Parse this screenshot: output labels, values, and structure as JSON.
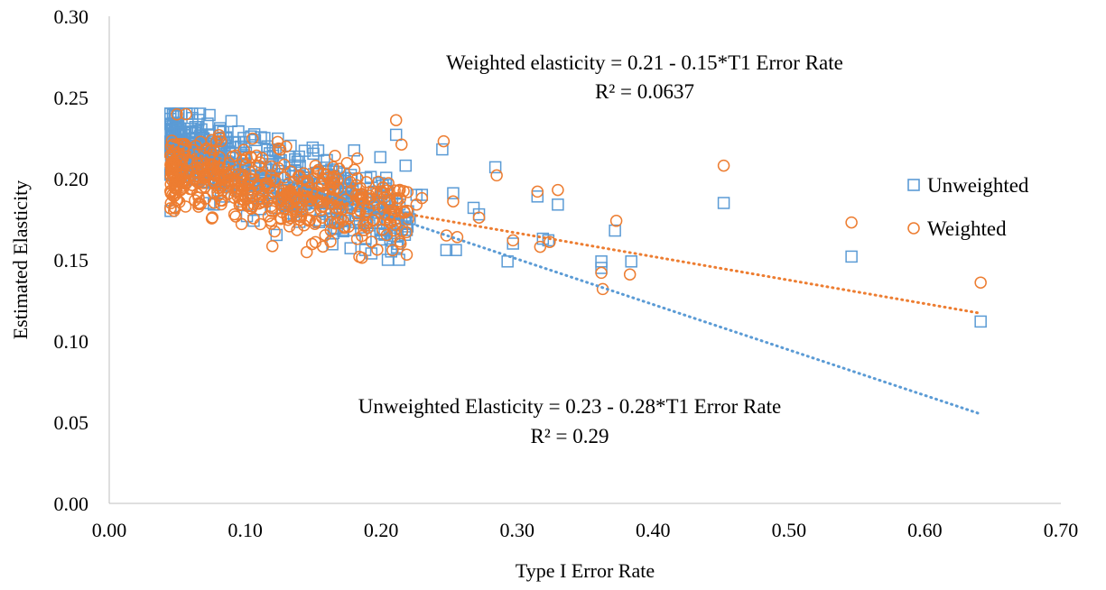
{
  "chart_data": {
    "type": "scatter",
    "title": "",
    "xlabel": "Type I Error Rate",
    "ylabel": "Estimated Elasticity",
    "xlim": [
      0.0,
      0.7
    ],
    "ylim": [
      0.0,
      0.3
    ],
    "x_ticks": [
      "0.00",
      "0.10",
      "0.20",
      "0.30",
      "0.40",
      "0.50",
      "0.60",
      "0.70"
    ],
    "y_ticks": [
      "0.00",
      "0.05",
      "0.10",
      "0.15",
      "0.20",
      "0.25",
      "0.30"
    ],
    "grid": false,
    "legend_position": "right",
    "series": [
      {
        "name": "Unweighted",
        "marker": "square",
        "color": "#5B9BD5",
        "trendline": {
          "intercept": 0.2345,
          "slope": -0.28,
          "x_range": [
            0.045,
            0.641
          ],
          "style": "dotted"
        },
        "cluster": {
          "x_range": [
            0.045,
            0.22
          ],
          "y_range": [
            0.15,
            0.24
          ],
          "approx_points": 520
        },
        "points": [
          [
            0.245,
            0.218
          ],
          [
            0.253,
            0.191
          ],
          [
            0.248,
            0.156
          ],
          [
            0.255,
            0.156
          ],
          [
            0.268,
            0.182
          ],
          [
            0.272,
            0.178
          ],
          [
            0.284,
            0.207
          ],
          [
            0.293,
            0.149
          ],
          [
            0.297,
            0.16
          ],
          [
            0.315,
            0.189
          ],
          [
            0.319,
            0.163
          ],
          [
            0.323,
            0.162
          ],
          [
            0.33,
            0.184
          ],
          [
            0.362,
            0.149
          ],
          [
            0.362,
            0.145
          ],
          [
            0.372,
            0.168
          ],
          [
            0.384,
            0.149
          ],
          [
            0.452,
            0.185
          ],
          [
            0.546,
            0.152
          ],
          [
            0.641,
            0.112
          ],
          [
            0.211,
            0.227
          ],
          [
            0.218,
            0.208
          ],
          [
            0.221,
            0.175
          ],
          [
            0.226,
            0.19
          ],
          [
            0.23,
            0.19
          ]
        ]
      },
      {
        "name": "Weighted",
        "marker": "circle",
        "color": "#ED7D31",
        "trendline": {
          "intercept": 0.21,
          "slope": -0.145,
          "x_range": [
            0.045,
            0.641
          ],
          "style": "dotted"
        },
        "cluster": {
          "x_range": [
            0.045,
            0.22
          ],
          "y_range": [
            0.148,
            0.242
          ],
          "approx_points": 520
        },
        "points": [
          [
            0.211,
            0.236
          ],
          [
            0.246,
            0.223
          ],
          [
            0.248,
            0.165
          ],
          [
            0.253,
            0.186
          ],
          [
            0.256,
            0.164
          ],
          [
            0.272,
            0.176
          ],
          [
            0.285,
            0.202
          ],
          [
            0.297,
            0.162
          ],
          [
            0.315,
            0.192
          ],
          [
            0.317,
            0.158
          ],
          [
            0.324,
            0.161
          ],
          [
            0.33,
            0.193
          ],
          [
            0.362,
            0.142
          ],
          [
            0.363,
            0.132
          ],
          [
            0.373,
            0.174
          ],
          [
            0.383,
            0.141
          ],
          [
            0.452,
            0.208
          ],
          [
            0.546,
            0.173
          ],
          [
            0.641,
            0.136
          ],
          [
            0.215,
            0.221
          ],
          [
            0.22,
            0.175
          ],
          [
            0.226,
            0.184
          ],
          [
            0.23,
            0.188
          ]
        ]
      }
    ],
    "annotations": [
      {
        "lines": [
          "Weighted elasticity = 0.21 - 0.15*T1 Error Rate",
          "R² = 0.0637"
        ]
      },
      {
        "lines": [
          "Unweighted Elasticity = 0.23 - 0.28*T1 Error Rate",
          "R² = 0.29"
        ]
      }
    ]
  }
}
